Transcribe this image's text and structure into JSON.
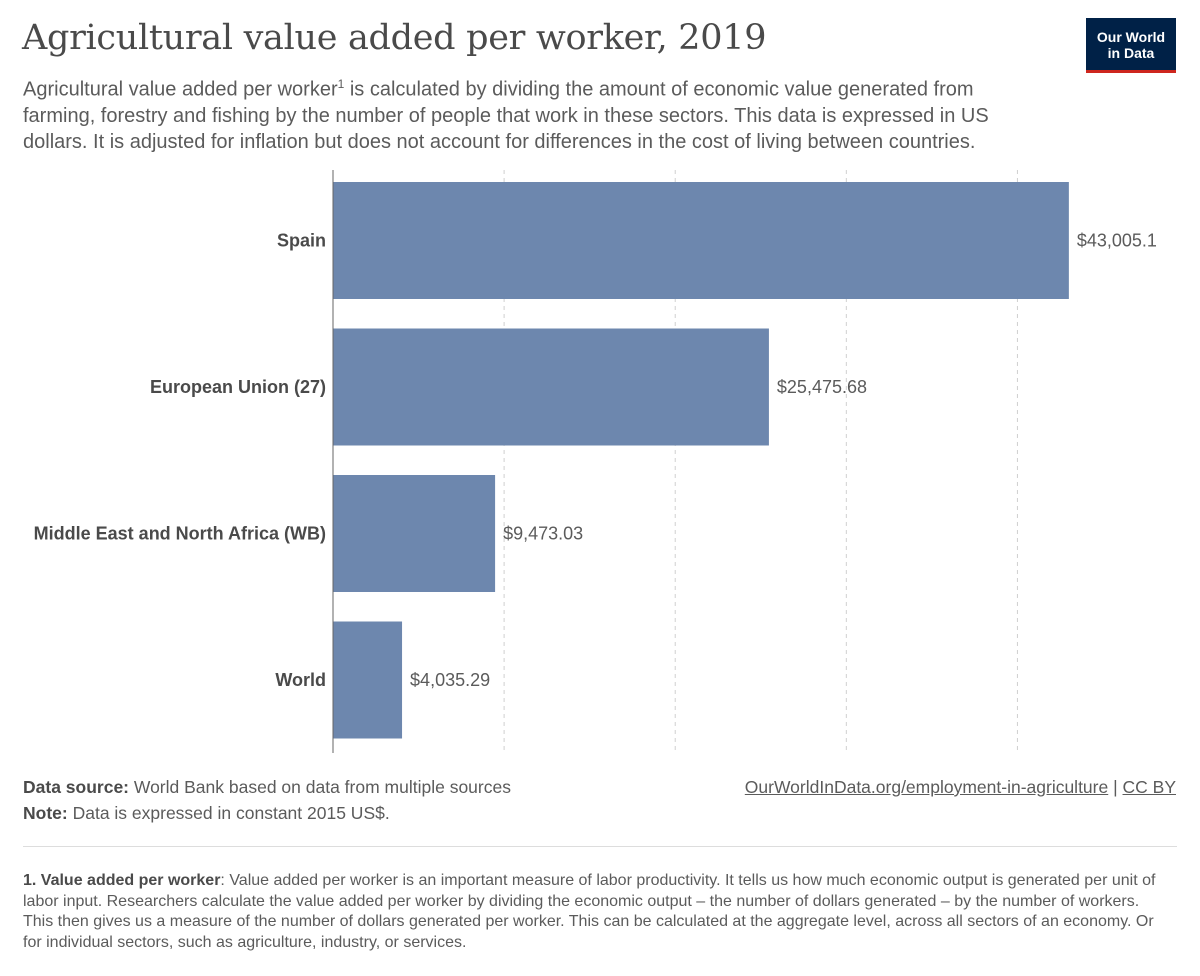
{
  "header": {
    "title": "Agricultural value added per worker, 2019",
    "subtitle_part1": "Agricultural value added per worker",
    "subtitle_sup": "1",
    "subtitle_part2": " is calculated by dividing the amount of economic value generated from farming, forestry and fishing by the number of people that work in these sectors. This data is expressed in US dollars. It is adjusted for inflation but does not account for differences in the cost of living between countries."
  },
  "logo": {
    "line1": "Our World",
    "line2": "in Data",
    "bg_color": "#002147",
    "accent_color": "#ce261e"
  },
  "chart_data": {
    "type": "bar",
    "orientation": "horizontal",
    "title": "Agricultural value added per worker, 2019",
    "categories": [
      "Spain",
      "European Union (27)",
      "Middle East and North Africa (WB)",
      "World"
    ],
    "values": [
      43005.1,
      25475.68,
      9473.03,
      4035.29
    ],
    "value_labels": [
      "$43,005.1",
      "$25,475.68",
      "$9,473.03",
      "$4,035.29"
    ],
    "xlim": [
      0,
      45000
    ],
    "gridlines": [
      10000,
      20000,
      30000,
      40000
    ],
    "grid": true,
    "bar_color": "#6d87ae"
  },
  "footer": {
    "source_label": "Data source:",
    "source_text": " World Bank based on data from multiple sources",
    "note_label": "Note:",
    "note_text": " Data is expressed in constant 2015 US$.",
    "url": "OurWorldInData.org/employment-in-agriculture",
    "separator": " | ",
    "license": "CC BY"
  },
  "footnote": {
    "label": "1. Value added per worker",
    "text": ": Value added per worker is an important measure of labor productivity. It tells us how much economic output is generated per unit of labor input. Researchers calculate the value added per worker by dividing the economic output – the number of dollars generated – by the number of workers. This then gives us a measure of the number of dollars generated per worker. This can be calculated at the aggregate level, across all sectors of an economy. Or for individual sectors, such as agriculture, industry, or services."
  }
}
